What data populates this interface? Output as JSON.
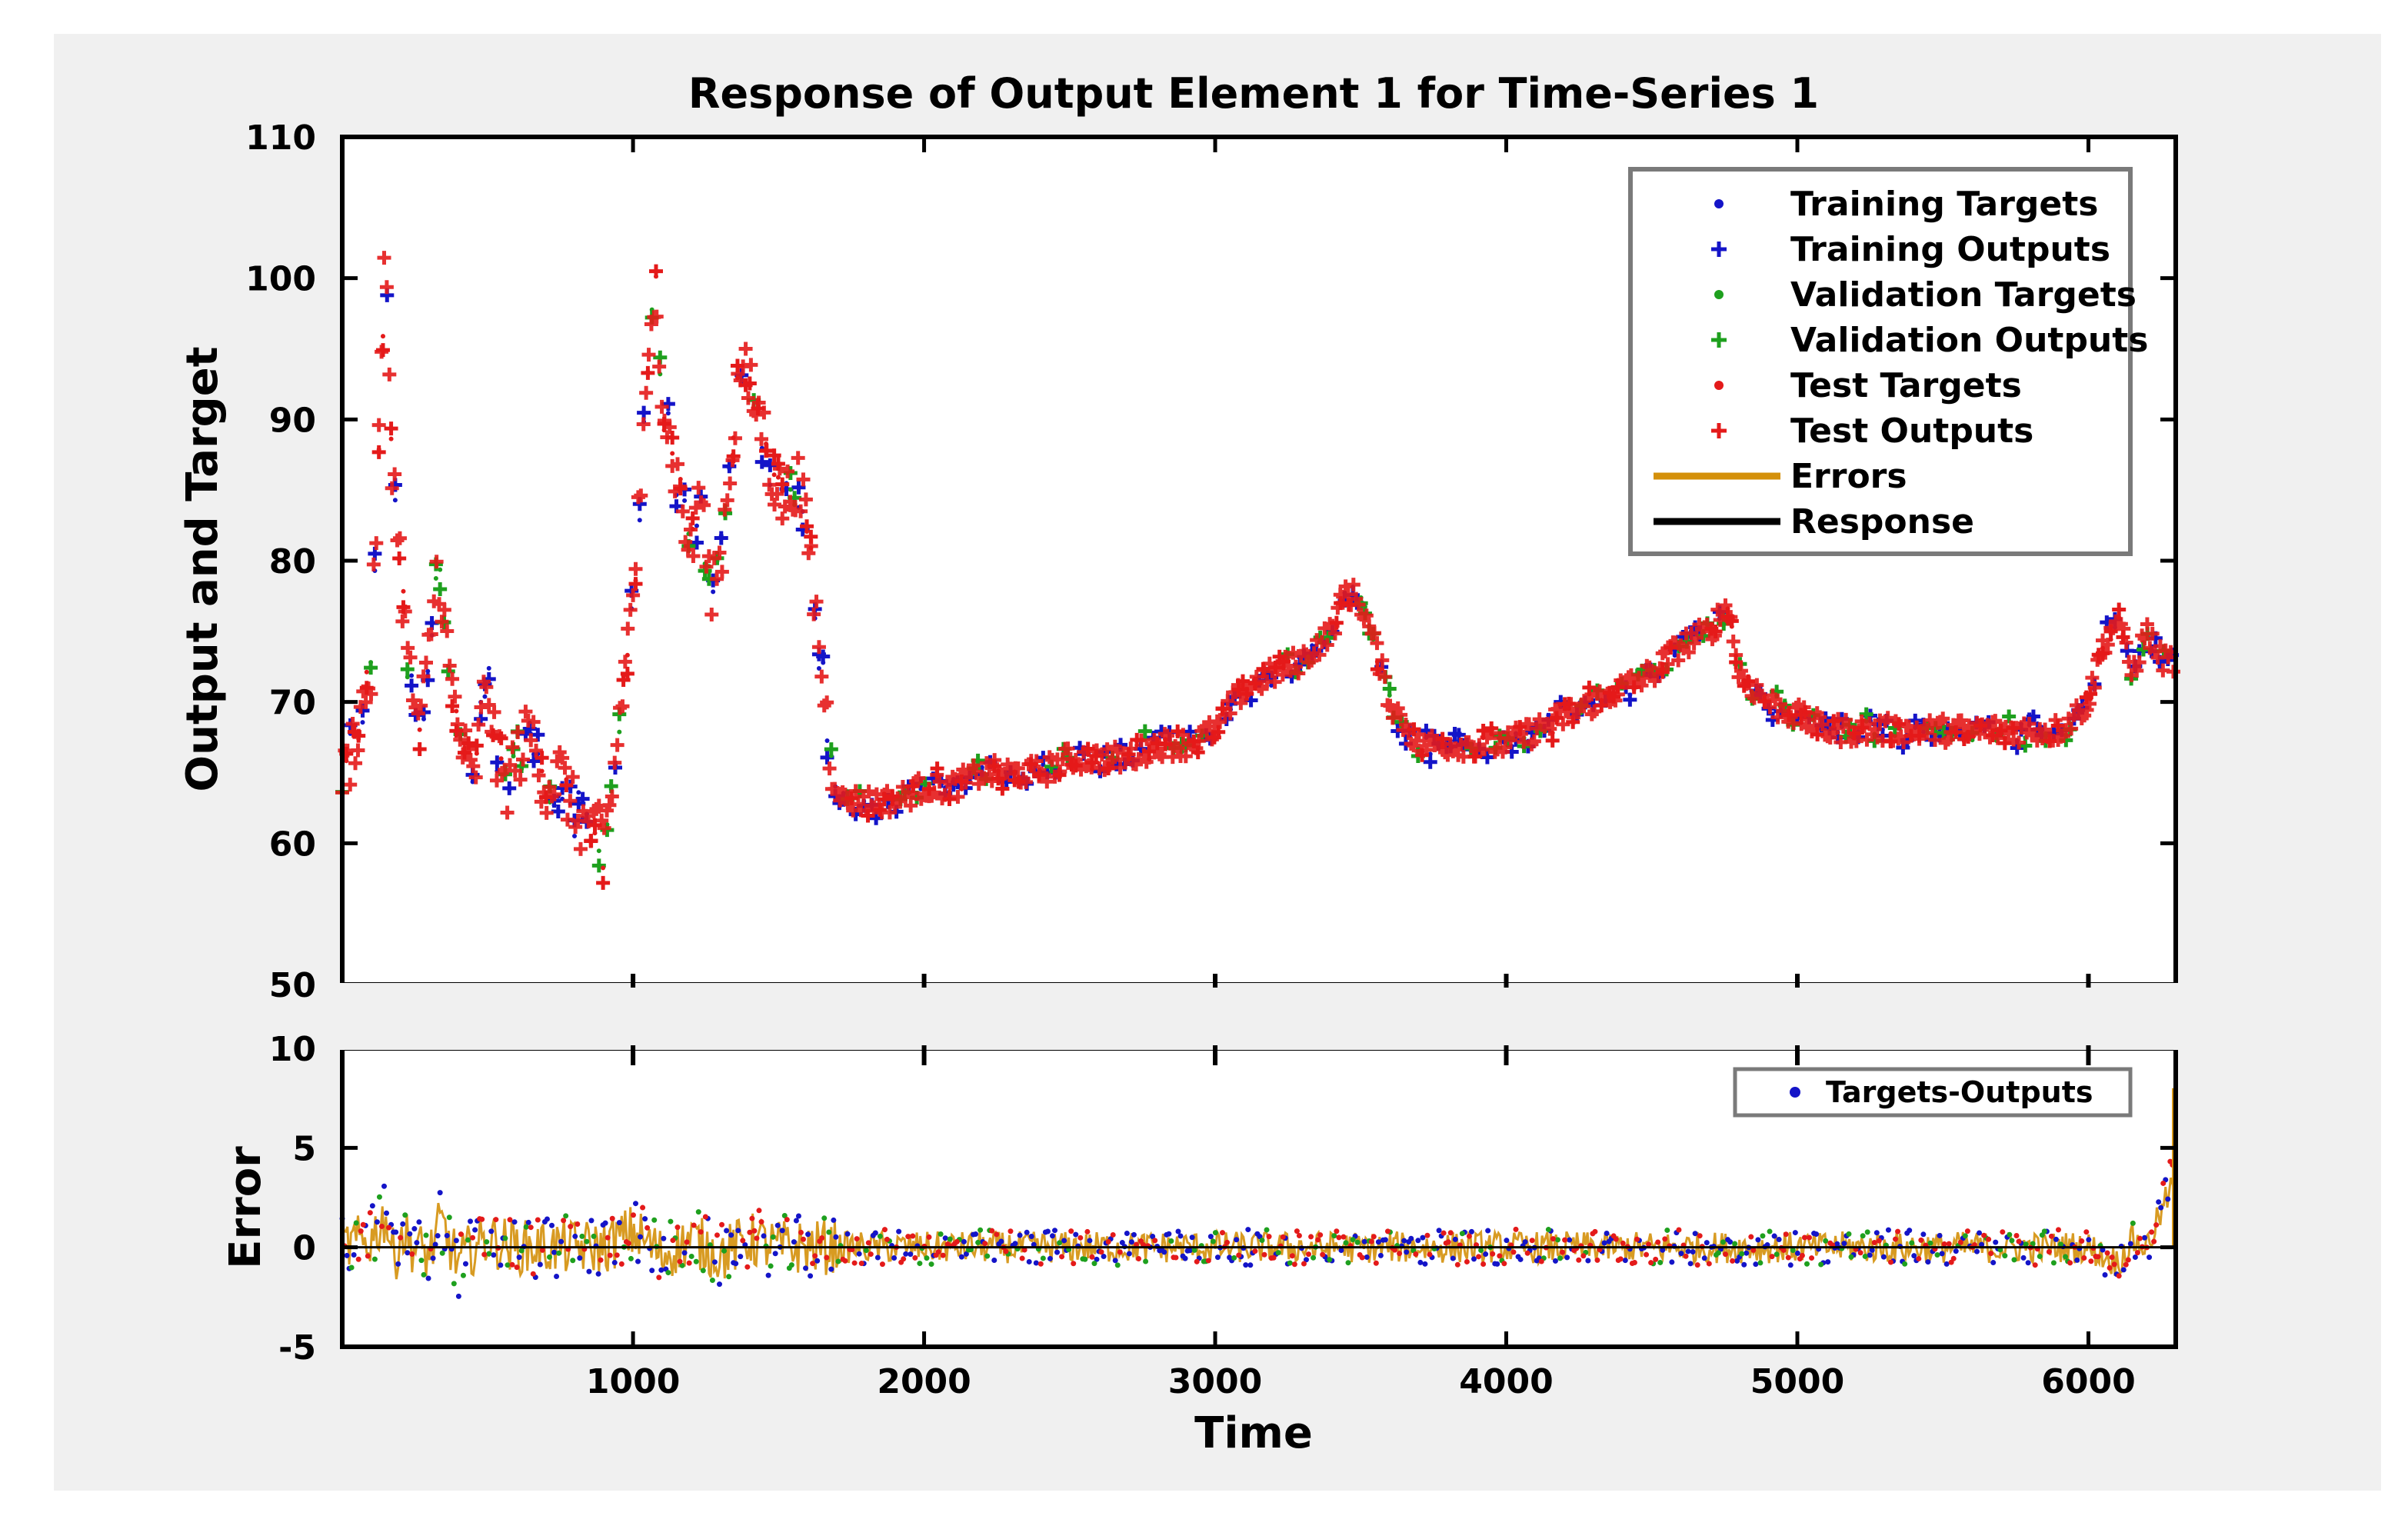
{
  "chart_data": {
    "type": "scatter",
    "title": "Response of Output Element 1 for Time-Series 1",
    "xlabel": "Time",
    "ylabel_top": "Output and Target",
    "ylabel_bottom": "Error",
    "xlim": [
      1,
      6300
    ],
    "xticks": [
      1000,
      2000,
      3000,
      4000,
      5000,
      6000
    ],
    "ylim_top": [
      50,
      110
    ],
    "yticks_top": [
      50,
      60,
      70,
      80,
      90,
      100,
      110
    ],
    "ylim_bottom": [
      -5,
      10
    ],
    "yticks_bottom": [
      -5,
      0,
      5,
      10
    ],
    "grid": false,
    "legend_top": {
      "placement": "top-right",
      "entries": [
        {
          "label": "Training Targets",
          "marker": "dot",
          "color": "#1414c8"
        },
        {
          "label": "Training Outputs",
          "marker": "plus",
          "color": "#1414c8"
        },
        {
          "label": "Validation Targets",
          "marker": "dot",
          "color": "#1ea01e"
        },
        {
          "label": "Validation  Outputs",
          "marker": "plus",
          "color": "#1ea01e"
        },
        {
          "label": "Test Targets",
          "marker": "dot",
          "color": "#e41a1a"
        },
        {
          "label": "Test Outputs",
          "marker": "plus",
          "color": "#e41a1a"
        },
        {
          "label": "Errors",
          "marker": "line",
          "color": "#d4900a"
        },
        {
          "label": "Response",
          "marker": "line",
          "color": "#000000"
        }
      ]
    },
    "legend_bottom": {
      "placement": "top-right",
      "entries": [
        {
          "label": "Targets-Outputs",
          "marker": "dot",
          "color": "#1414c8"
        }
      ]
    },
    "response_series": {
      "x": [
        1,
        50,
        100,
        130,
        150,
        170,
        200,
        230,
        270,
        300,
        330,
        370,
        400,
        450,
        500,
        530,
        560,
        600,
        650,
        700,
        750,
        800,
        850,
        900,
        930,
        960,
        1000,
        1030,
        1060,
        1080,
        1100,
        1130,
        1160,
        1200,
        1230,
        1260,
        1300,
        1340,
        1370,
        1400,
        1440,
        1480,
        1520,
        1560,
        1600,
        1640,
        1680,
        1720,
        1760,
        1800,
        1900,
        2000,
        2100,
        2200,
        2300,
        2400,
        2500,
        2600,
        2700,
        2800,
        2900,
        3000,
        3100,
        3200,
        3300,
        3400,
        3450,
        3500,
        3550,
        3600,
        3700,
        3800,
        3900,
        4000,
        4100,
        4200,
        4300,
        4400,
        4500,
        4600,
        4700,
        4760,
        4800,
        4900,
        5000,
        5100,
        5200,
        5300,
        5400,
        5500,
        5600,
        5700,
        5800,
        5900,
        6000,
        6050,
        6100,
        6150,
        6200,
        6250,
        6300
      ],
      "y": [
        64,
        68,
        72,
        90,
        103,
        88,
        80,
        72,
        68,
        74,
        80,
        72,
        68,
        64,
        72,
        66,
        64,
        66,
        68,
        64,
        65,
        62,
        61,
        60,
        64,
        70,
        78,
        86,
        95,
        100,
        92,
        88,
        85,
        80,
        86,
        78,
        80,
        88,
        94,
        92,
        90,
        86,
        84,
        86,
        82,
        74,
        66,
        63,
        63,
        63,
        63,
        64,
        64,
        65,
        65,
        65,
        66,
        66,
        66,
        67,
        67,
        68,
        71,
        72,
        73,
        75,
        78,
        77,
        74,
        70,
        67,
        67,
        67,
        67,
        68,
        69,
        70,
        71,
        72,
        74,
        75,
        77,
        72,
        70,
        69,
        68,
        68,
        68,
        68,
        68,
        68,
        68,
        68,
        68,
        70,
        74,
        76,
        72,
        75,
        73,
        73
      ]
    },
    "error_series": {
      "x": [
        1,
        100,
        150,
        180,
        200,
        250,
        300,
        340,
        400,
        450,
        500,
        600,
        700,
        800,
        900,
        1000,
        1100,
        1200,
        1300,
        1400,
        1500,
        1600,
        1700,
        2000,
        3000,
        4000,
        5000,
        6000,
        6100,
        6150,
        6200,
        6280,
        6300
      ],
      "y": [
        0,
        1,
        4,
        -2,
        2,
        0,
        -1,
        3,
        -2,
        0,
        1,
        0,
        0,
        0,
        0,
        2,
        -1,
        1,
        -1,
        1,
        0,
        0,
        0,
        0,
        0,
        0,
        0,
        0,
        -2,
        1,
        0,
        7,
        8
      ]
    }
  },
  "colors": {
    "training": "#1414c8",
    "validation": "#1ea01e",
    "test": "#e41a1a",
    "errors": "#d4900a",
    "response": "#000000"
  }
}
